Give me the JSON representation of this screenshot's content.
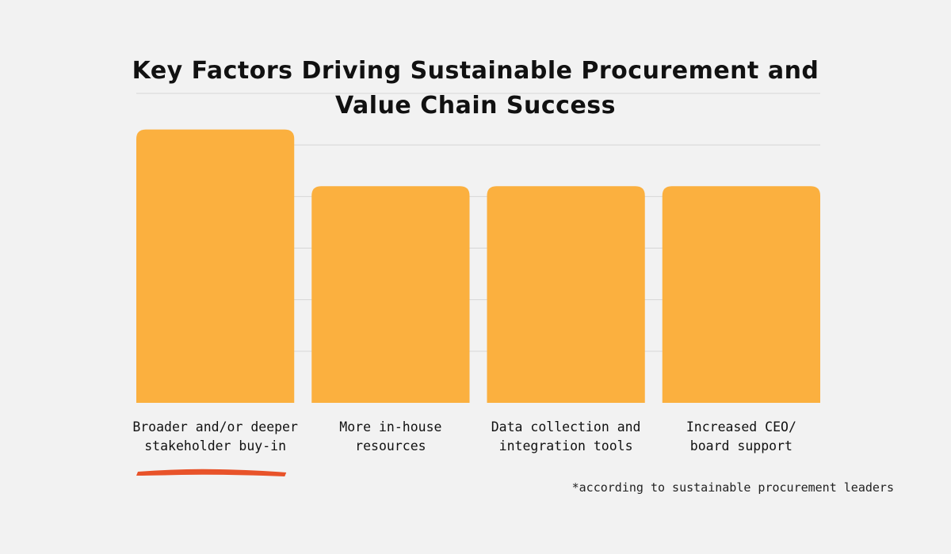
{
  "chart_data": {
    "type": "bar",
    "title": "Key Factors Driving Sustainable Procurement and Value Chain Success",
    "categories": [
      [
        "Broader and/or deeper",
        "stakeholder buy-in"
      ],
      [
        "More in-house",
        "resources"
      ],
      [
        "Data collection and",
        "integration tools"
      ],
      [
        "Increased CEO/",
        "board support"
      ]
    ],
    "values": [
      53,
      42,
      42,
      42
    ],
    "ylim": [
      0,
      60
    ],
    "grid": true,
    "xlabel": "",
    "ylabel": "",
    "highlight_index": 0
  },
  "footnote": "*according to sustainable procurement leaders",
  "colors": {
    "bar": "#fbb03f",
    "grid": "#d6d6d6",
    "underline": "#e8532a",
    "text": "#111111",
    "background": "#f2f2f2"
  }
}
